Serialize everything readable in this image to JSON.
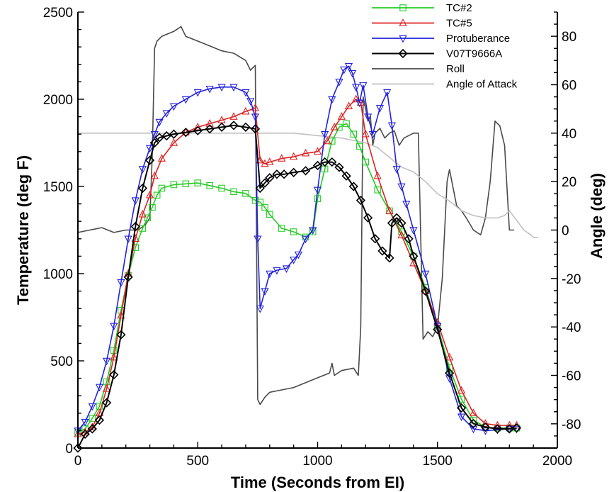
{
  "chart_data": {
    "type": "line",
    "xlabel": "Time (Seconds from EI)",
    "ylabel": "Temperature (deg F)",
    "y2label": "Angle (deg)",
    "xlim": [
      0,
      2000
    ],
    "ylim": [
      0,
      2500
    ],
    "y2lim": [
      -90,
      90
    ],
    "x_ticks": [
      0,
      500,
      1000,
      1500,
      2000
    ],
    "y_ticks": [
      0,
      500,
      1000,
      1500,
      2000,
      2500
    ],
    "y2_ticks": [
      -80,
      -60,
      -40,
      -20,
      0,
      20,
      40,
      60,
      80
    ],
    "grid": false,
    "legend_position": "top-right",
    "series": [
      {
        "name": "TC#2",
        "axis": "left",
        "color": "#22cc22",
        "marker": "square",
        "x": [
          0,
          30,
          60,
          90,
          120,
          150,
          180,
          210,
          240,
          270,
          290,
          310,
          330,
          350,
          400,
          450,
          500,
          550,
          600,
          650,
          700,
          740,
          760,
          780,
          800,
          850,
          900,
          950,
          980,
          1000,
          1030,
          1060,
          1090,
          1120,
          1150,
          1175,
          1200,
          1250,
          1300,
          1350,
          1400,
          1450,
          1500,
          1550,
          1600,
          1650,
          1700,
          1750,
          1800,
          1830
        ],
        "y": [
          90,
          110,
          170,
          240,
          380,
          560,
          790,
          990,
          1150,
          1260,
          1320,
          1380,
          1450,
          1490,
          1510,
          1515,
          1520,
          1505,
          1490,
          1470,
          1460,
          1420,
          1410,
          1380,
          1340,
          1260,
          1240,
          1210,
          1240,
          1430,
          1600,
          1760,
          1840,
          1860,
          1800,
          1730,
          1640,
          1480,
          1360,
          1240,
          1100,
          920,
          700,
          460,
          280,
          160,
          120,
          115,
          115,
          115
        ]
      },
      {
        "name": "TC#5",
        "axis": "left",
        "color": "#dd2222",
        "marker": "triangle",
        "x": [
          0,
          30,
          60,
          90,
          120,
          150,
          180,
          210,
          240,
          270,
          300,
          320,
          350,
          400,
          450,
          500,
          550,
          600,
          650,
          700,
          740,
          760,
          780,
          800,
          850,
          900,
          950,
          1000,
          1040,
          1070,
          1100,
          1130,
          1160,
          1180,
          1200,
          1250,
          1300,
          1350,
          1400,
          1450,
          1500,
          1550,
          1600,
          1650,
          1700,
          1750,
          1800,
          1830
        ],
        "y": [
          80,
          90,
          120,
          200,
          340,
          520,
          760,
          1000,
          1200,
          1340,
          1450,
          1560,
          1660,
          1750,
          1810,
          1840,
          1860,
          1880,
          1900,
          1930,
          1950,
          1650,
          1630,
          1640,
          1660,
          1670,
          1690,
          1700,
          1760,
          1840,
          1900,
          1960,
          2000,
          1980,
          1800,
          1560,
          1360,
          1220,
          1060,
          900,
          720,
          520,
          330,
          200,
          140,
          130,
          130,
          130
        ]
      },
      {
        "name": "Protuberance",
        "axis": "left",
        "color": "#2222dd",
        "marker": "triangle-down",
        "x": [
          0,
          30,
          60,
          90,
          120,
          150,
          180,
          210,
          240,
          270,
          300,
          320,
          340,
          370,
          400,
          450,
          500,
          550,
          600,
          650,
          700,
          720,
          740,
          750,
          760,
          780,
          800,
          830,
          870,
          900,
          920,
          950,
          980,
          1000,
          1030,
          1060,
          1090,
          1110,
          1130,
          1145,
          1160,
          1175,
          1190,
          1210,
          1230,
          1260,
          1290,
          1310,
          1330,
          1350,
          1370,
          1400,
          1450,
          1500,
          1550,
          1600,
          1650,
          1700,
          1750,
          1800,
          1830
        ],
        "y": [
          100,
          150,
          240,
          350,
          500,
          700,
          950,
          1200,
          1420,
          1600,
          1720,
          1800,
          1870,
          1920,
          1960,
          2000,
          2040,
          2060,
          2070,
          2070,
          2040,
          1990,
          1900,
          1200,
          800,
          900,
          1000,
          1020,
          1030,
          1080,
          1110,
          1200,
          1250,
          1480,
          1800,
          2000,
          2100,
          2170,
          2190,
          2150,
          2070,
          1980,
          2080,
          1900,
          1800,
          1950,
          2040,
          1850,
          1600,
          1500,
          1400,
          1250,
          1000,
          700,
          400,
          180,
          110,
          100,
          105,
          110,
          110
        ]
      },
      {
        "name": "V07T9666A",
        "axis": "left",
        "color": "#000000",
        "marker": "diamond",
        "x": [
          0,
          30,
          60,
          90,
          120,
          150,
          180,
          210,
          240,
          270,
          300,
          320,
          340,
          370,
          400,
          450,
          500,
          550,
          600,
          650,
          700,
          740,
          760,
          780,
          800,
          830,
          860,
          900,
          950,
          1000,
          1030,
          1060,
          1090,
          1120,
          1150,
          1180,
          1210,
          1240,
          1270,
          1300,
          1310,
          1330,
          1350,
          1380,
          1400,
          1450,
          1500,
          1550,
          1600,
          1650,
          1700,
          1750,
          1800,
          1830
        ],
        "y": [
          0,
          80,
          110,
          160,
          260,
          420,
          650,
          980,
          1270,
          1490,
          1650,
          1750,
          1780,
          1790,
          1800,
          1810,
          1820,
          1830,
          1840,
          1850,
          1840,
          1830,
          1490,
          1520,
          1550,
          1570,
          1570,
          1580,
          1590,
          1620,
          1640,
          1640,
          1610,
          1560,
          1500,
          1420,
          1320,
          1200,
          1130,
          1090,
          1290,
          1320,
          1290,
          1200,
          1100,
          900,
          680,
          430,
          230,
          140,
          120,
          110,
          110,
          115
        ]
      },
      {
        "name": "Roll",
        "axis": "right",
        "color": "#4a4a4a",
        "marker": "none",
        "x": [
          0,
          50,
          100,
          150,
          200,
          250,
          280,
          300,
          310,
          320,
          330,
          350,
          400,
          430,
          450,
          500,
          550,
          600,
          650,
          700,
          720,
          740,
          750,
          760,
          780,
          800,
          850,
          900,
          950,
          1000,
          1050,
          1060,
          1070,
          1100,
          1150,
          1170,
          1180,
          1190,
          1200,
          1210,
          1220,
          1230,
          1240,
          1260,
          1280,
          1300,
          1320,
          1340,
          1360,
          1380,
          1400,
          1420,
          1440,
          1460,
          1480,
          1500,
          1520,
          1530,
          1540,
          1550,
          1580,
          1600,
          1620,
          1650,
          1680,
          1700,
          1720,
          1740,
          1760,
          1780,
          1800,
          1820
        ],
        "y": [
          -1,
          0,
          1,
          -1,
          0,
          0,
          2,
          5,
          30,
          75,
          78,
          80,
          82,
          84,
          80,
          78,
          76,
          74,
          73,
          70,
          66,
          68,
          -70,
          -72,
          -69,
          -67,
          -66,
          -65,
          -63,
          -61,
          -59,
          -55,
          -60,
          -58,
          -57,
          -60,
          -40,
          55,
          50,
          45,
          47,
          35,
          40,
          42,
          38,
          40,
          41,
          35,
          38,
          39,
          40,
          40,
          -45,
          -42,
          -44,
          -40,
          -20,
          0,
          20,
          25,
          10,
          8,
          5,
          0,
          -2,
          5,
          20,
          45,
          43,
          35,
          0,
          0
        ]
      },
      {
        "name": "Angle of Attack",
        "axis": "right",
        "color": "#c0c0c0",
        "marker": "none",
        "x": [
          0,
          100,
          200,
          300,
          400,
          500,
          600,
          700,
          800,
          900,
          1000,
          1100,
          1150,
          1200,
          1250,
          1300,
          1350,
          1400,
          1450,
          1500,
          1550,
          1600,
          1650,
          1700,
          1750,
          1780,
          1800,
          1830,
          1860,
          1890,
          1900,
          1920
        ],
        "y": [
          40,
          40,
          40,
          40,
          40,
          40,
          40,
          40,
          40,
          40,
          39,
          38,
          37,
          36,
          34,
          30,
          26,
          24,
          20,
          15,
          12,
          8,
          6,
          5,
          5,
          6,
          8,
          4,
          0,
          -2,
          -3,
          -3
        ]
      }
    ]
  }
}
